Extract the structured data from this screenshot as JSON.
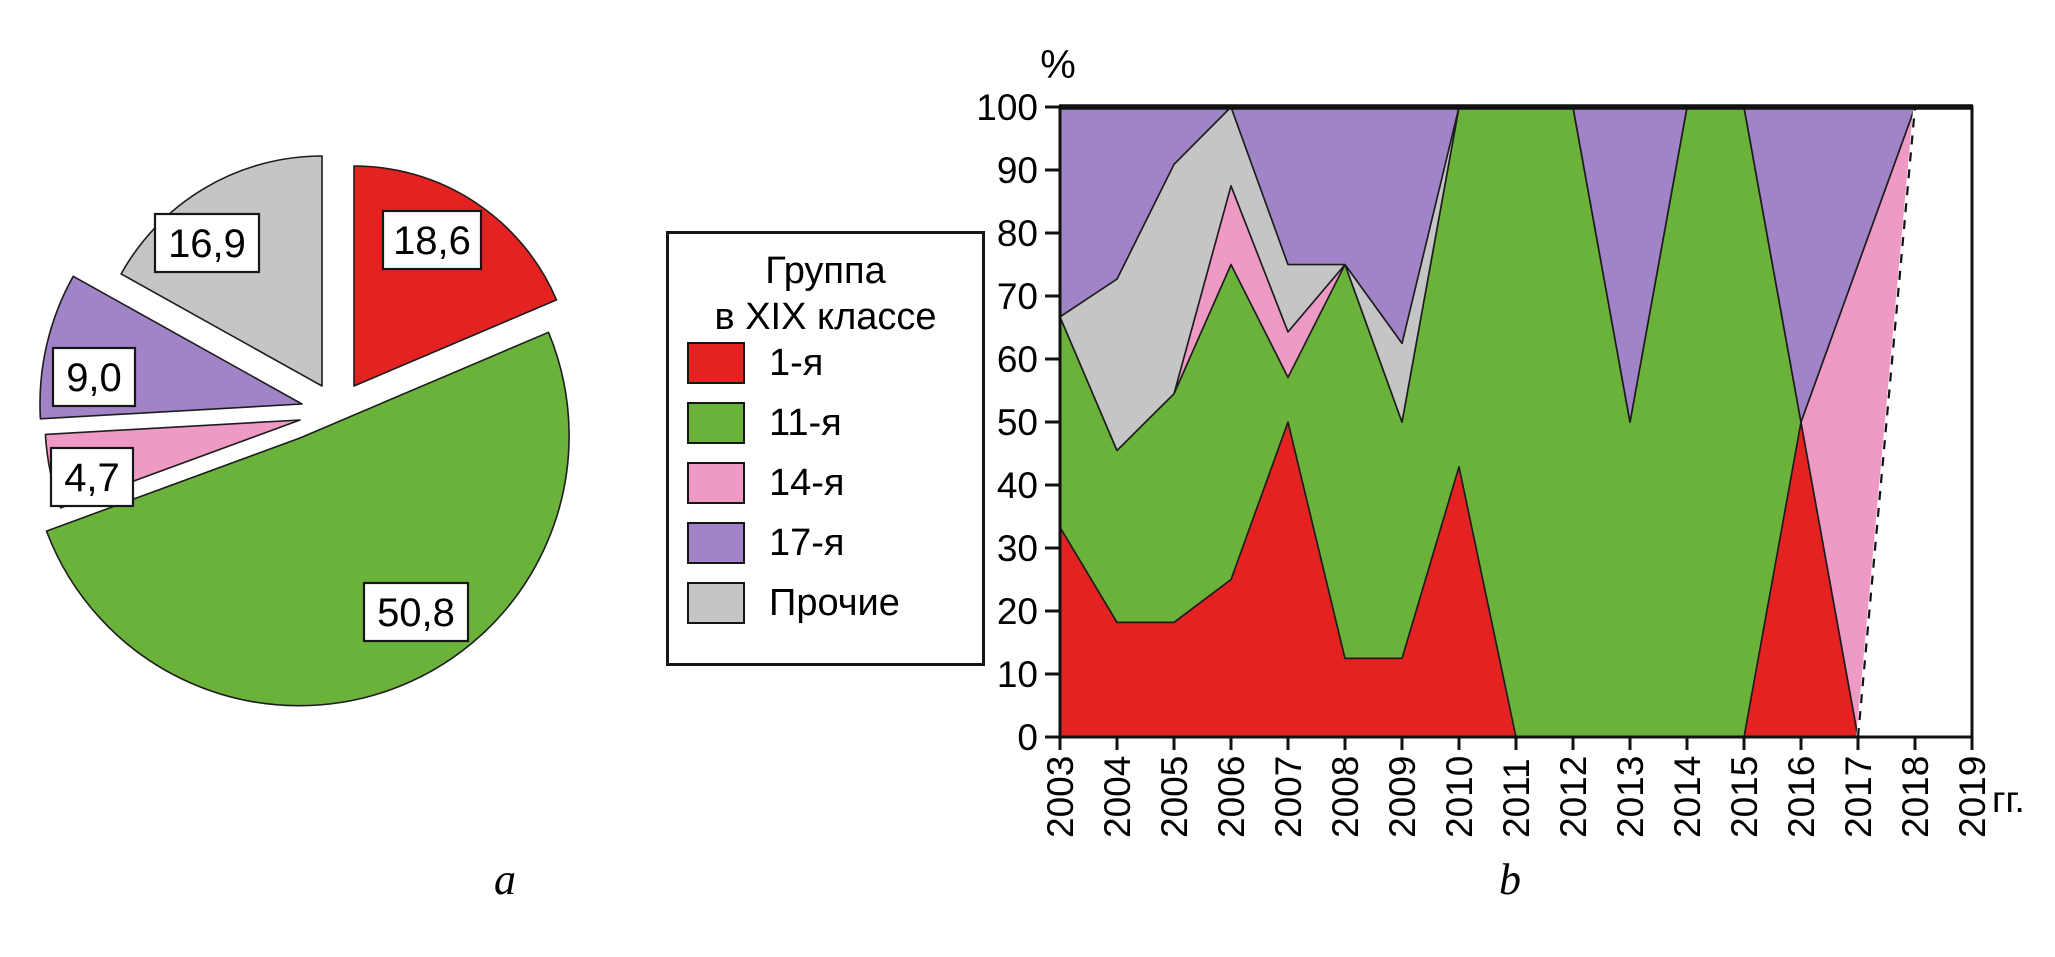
{
  "figure": {
    "caption_a": "a",
    "caption_b": "b"
  },
  "legend": {
    "title_line1": "Группа",
    "title_line2": "в XIX классе",
    "items": [
      {
        "label": "1-я",
        "color": "#e32221"
      },
      {
        "label": "11-я",
        "color": "#6bb23a"
      },
      {
        "label": "14-я",
        "color": "#ee9ac4"
      },
      {
        "label": "17-я",
        "color": "#a183c7"
      },
      {
        "label": "Прочие",
        "color": "#c5c5c5"
      }
    ]
  },
  "chart_data": [
    {
      "id": "pie",
      "type": "pie",
      "legend_title": "Группа в XIX классе",
      "unit": "%",
      "start_angle_deg": 0,
      "clockwise": true,
      "exploded": true,
      "slices": [
        {
          "label": "1-я",
          "value": 18.6,
          "value_label": "18,6",
          "color": "#e32221"
        },
        {
          "label": "11-я",
          "value": 50.8,
          "value_label": "50,8",
          "color": "#6bb23a"
        },
        {
          "label": "14-я",
          "value": 4.7,
          "value_label": "4,7",
          "color": "#ee9ac4"
        },
        {
          "label": "17-я",
          "value": 9.0,
          "value_label": "9,0",
          "color": "#a183c7"
        },
        {
          "label": "Прочие",
          "value": 16.9,
          "value_label": "16,9",
          "color": "#c5c5c5"
        }
      ]
    },
    {
      "id": "stacked-area",
      "type": "area",
      "stacked": true,
      "ylabel": "%",
      "xlabel": "гг.",
      "ylim": [
        0,
        100
      ],
      "y_ticks": [
        0,
        10,
        20,
        30,
        40,
        50,
        60,
        70,
        80,
        90,
        100
      ],
      "x_ticks": [
        2003,
        2004,
        2005,
        2006,
        2007,
        2008,
        2009,
        2010,
        2011,
        2012,
        2013,
        2014,
        2015,
        2016,
        2017,
        2018,
        2019
      ],
      "years": [
        2003,
        2004,
        2005,
        2006,
        2007,
        2008,
        2009,
        2010,
        2011,
        2012,
        2013,
        2014,
        2015,
        2016,
        2017,
        2018
      ],
      "series": [
        {
          "name": "1-я",
          "color": "#e32221",
          "values": [
            33.3,
            18.2,
            18.2,
            25.0,
            50.0,
            12.5,
            12.5,
            42.9,
            0,
            0,
            0,
            0,
            0,
            50.0,
            0,
            0
          ]
        },
        {
          "name": "11-я",
          "color": "#6bb23a",
          "values": [
            33.4,
            27.3,
            36.3,
            50.0,
            7.1,
            62.5,
            37.5,
            57.1,
            100,
            100,
            50.0,
            100,
            100,
            0,
            0,
            0
          ]
        },
        {
          "name": "14-я",
          "color": "#ee9ac4",
          "closes_at_top": true,
          "values": [
            0,
            0,
            0,
            12.5,
            7.2,
            0,
            0,
            0,
            0,
            0,
            0,
            0,
            0,
            0,
            75.0,
            100
          ]
        },
        {
          "name": "Прочие",
          "color": "#c5c5c5",
          "values": [
            0,
            27.2,
            36.4,
            12.5,
            10.7,
            0,
            12.5,
            0,
            0,
            0,
            0,
            0,
            0,
            0,
            0,
            0
          ]
        },
        {
          "name": "17-я",
          "color": "#a183c7",
          "values": [
            33.3,
            27.3,
            9.1,
            0,
            25.0,
            25.0,
            37.5,
            0,
            0,
            0,
            50.0,
            0,
            0,
            50.0,
            25.0,
            0
          ]
        }
      ],
      "dashed_segment": {
        "from": [
          2017,
          0
        ],
        "to": [
          2018,
          100
        ]
      },
      "legend_position": "none",
      "grid": false
    }
  ]
}
